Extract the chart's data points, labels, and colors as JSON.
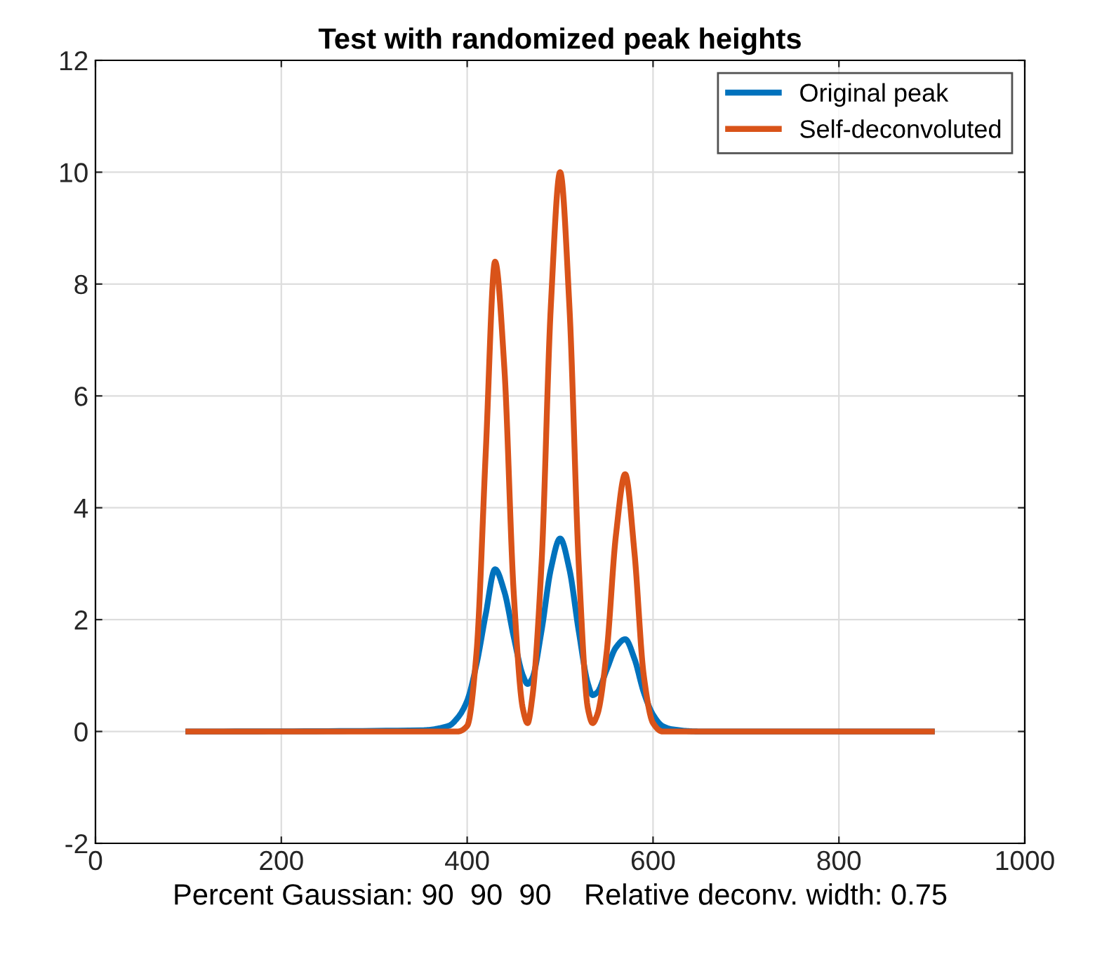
{
  "chart_data": {
    "type": "line",
    "title": "Test with randomized peak heights",
    "xlabel": "Percent Gaussian: 90  90  90    Relative deconv. width: 0.75",
    "x": [
      100,
      350,
      380,
      390,
      400,
      410,
      420,
      430,
      440,
      450,
      460,
      465,
      470,
      480,
      490,
      500,
      510,
      520,
      530,
      535,
      540,
      550,
      560,
      570,
      580,
      590,
      600,
      610,
      620,
      650,
      900
    ],
    "series": [
      {
        "name": "Original peak",
        "color": "#0072bd",
        "values": [
          0,
          0.02,
          0.1,
          0.25,
          0.55,
          1.2,
          2.1,
          2.9,
          2.5,
          1.7,
          1.0,
          0.85,
          0.95,
          1.8,
          2.9,
          3.45,
          2.9,
          1.8,
          0.85,
          0.65,
          0.7,
          1.1,
          1.5,
          1.65,
          1.3,
          0.7,
          0.3,
          0.1,
          0.04,
          0,
          0
        ]
      },
      {
        "name": "Self-deconvoluted",
        "color": "#d95319",
        "values": [
          0,
          0,
          0,
          0,
          0.1,
          1.4,
          5.0,
          8.4,
          6.5,
          2.5,
          0.4,
          0.15,
          0.6,
          3.0,
          7.6,
          10.0,
          7.6,
          3.0,
          0.4,
          0.15,
          0.3,
          1.4,
          3.5,
          4.6,
          3.2,
          1.0,
          0.15,
          0,
          0,
          0,
          0
        ]
      }
    ],
    "xlim": [
      0,
      1000
    ],
    "xticks": [
      0,
      200,
      400,
      600,
      800,
      1000
    ],
    "ylim": [
      -2,
      12
    ],
    "yticks": [
      -2,
      0,
      2,
      4,
      6,
      8,
      10,
      12
    ],
    "grid": true,
    "legend": "top right"
  }
}
